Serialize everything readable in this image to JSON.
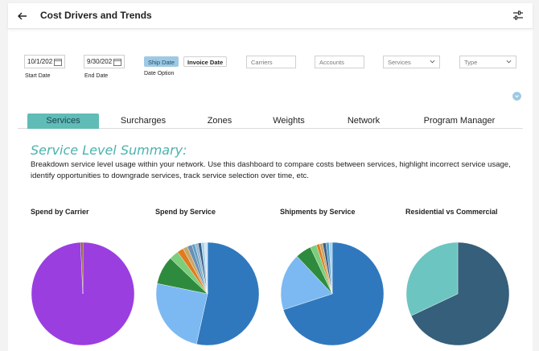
{
  "header": {
    "title": "Cost Drivers and Trends"
  },
  "filters": {
    "start_date": "10/1/202",
    "start_date_label": "Start Date",
    "end_date": "9/30/202",
    "end_date_label": "End Date",
    "date_option_label": "Date Option",
    "ship_date_label": "Ship Date",
    "invoice_date_label": "Invoice Date",
    "carriers_placeholder": "Carriers",
    "accounts_placeholder": "Accounts",
    "services_placeholder": "Services",
    "type_placeholder": "Type"
  },
  "tabs": [
    {
      "label": "Services",
      "active": true
    },
    {
      "label": "Surcharges"
    },
    {
      "label": "Zones"
    },
    {
      "label": "Weights"
    },
    {
      "label": "Network"
    },
    {
      "label": "Program Manager"
    }
  ],
  "section": {
    "title": "Service Level Summary:",
    "description": "Breakdown service level usage within your network. Use this dashboard to compare costs between services, highlight incorrect service usage, identify opportunities to downgrade services, track service selection over time, etc."
  },
  "chart_data": [
    {
      "type": "pie",
      "title": "Spend by Carrier",
      "values": [
        99.3,
        0.7
      ],
      "colors": [
        "#9a3ee0",
        "#8b5a2b"
      ]
    },
    {
      "type": "pie",
      "title": "Spend by Service",
      "values": [
        54,
        25,
        9,
        3,
        2,
        1.5,
        1.5,
        1,
        1,
        1,
        1,
        1
      ],
      "colors": [
        "#2f78bd",
        "#7cb9f2",
        "#2e8b3e",
        "#7ccd7c",
        "#e07b20",
        "#c7a86a",
        "#6a8fb3",
        "#5aa0c7",
        "#9bb7cc",
        "#3a5f8a",
        "#a6d1ee",
        "#cfe4f4"
      ]
    },
    {
      "type": "pie",
      "title": "Shipments by Service",
      "values": [
        70,
        18,
        5,
        2,
        1,
        1,
        1,
        1,
        1
      ],
      "colors": [
        "#2f78bd",
        "#7cb9f2",
        "#2e8b3e",
        "#7ccd7c",
        "#e07b20",
        "#c7a86a",
        "#3a5f8a",
        "#5aa0c7",
        "#a6d1ee"
      ]
    },
    {
      "type": "pie",
      "title": "Residential vs Commercial",
      "values": [
        68,
        32
      ],
      "colors": [
        "#355f7a",
        "#6cc5c0"
      ]
    }
  ]
}
